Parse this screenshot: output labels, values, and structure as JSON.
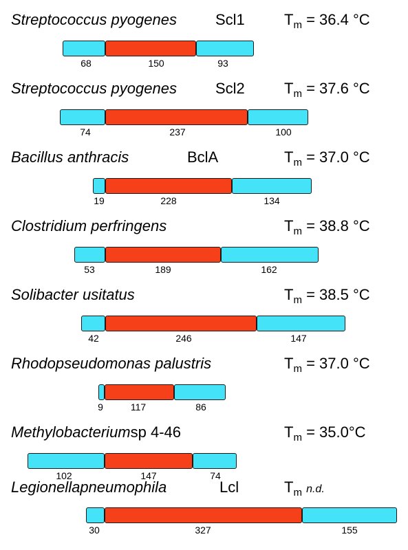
{
  "tm_label": "T",
  "tm_sub": "m",
  "entries": [
    {
      "genus": "Streptococcus",
      "species": "pyogenes",
      "protein": "Scl1",
      "tm": "=  36.4 °C",
      "nterm": "68",
      "collagen": "150",
      "cterm": "93",
      "tm_nd": false
    },
    {
      "genus": "Streptococcus",
      "species": "pyogenes",
      "protein": "Scl2",
      "tm": "=  37.6 °C",
      "nterm": "74",
      "collagen": "237",
      "cterm": "100",
      "tm_nd": false
    },
    {
      "genus": "Bacillus",
      "species": "anthracis",
      "protein": "BclA",
      "tm": "=  37.0 °C",
      "nterm": "19",
      "collagen": "228",
      "cterm": "134",
      "tm_nd": false
    },
    {
      "genus": "Clostridium",
      "species": "perfringens",
      "protein": "",
      "tm": "=  38.8 °C",
      "nterm": "53",
      "collagen": "189",
      "cterm": "162",
      "tm_nd": false
    },
    {
      "genus": "Solibacter",
      "species": "usitatus",
      "protein": "",
      "tm": "=  38.5 °C",
      "nterm": "42",
      "collagen": "246",
      "cterm": "147",
      "tm_nd": false
    },
    {
      "genus": "Rhodopseudomonas",
      "species": "palustris",
      "protein": "",
      "tm": "=  37.0 °C",
      "nterm": "9",
      "collagen": "117",
      "cterm": "86",
      "tm_nd": false
    },
    {
      "genus": "Methylobacterium",
      "species": "sp 4-46",
      "protein": "",
      "tm": "= 35.0°C",
      "nterm": "102",
      "collagen": "147",
      "cterm": "74",
      "tm_nd": false
    },
    {
      "genus": "Legionella",
      "species": "pneumophila",
      "protein": "Lcl",
      "tm": "n.d.",
      "nterm": "30",
      "collagen": "327",
      "cterm": "155",
      "tm_nd": true
    }
  ],
  "colors": {
    "nterm_domain": "#45e3f7",
    "collagen_domain": "#f5401a",
    "cterm_domain": "#45e3f7"
  }
}
